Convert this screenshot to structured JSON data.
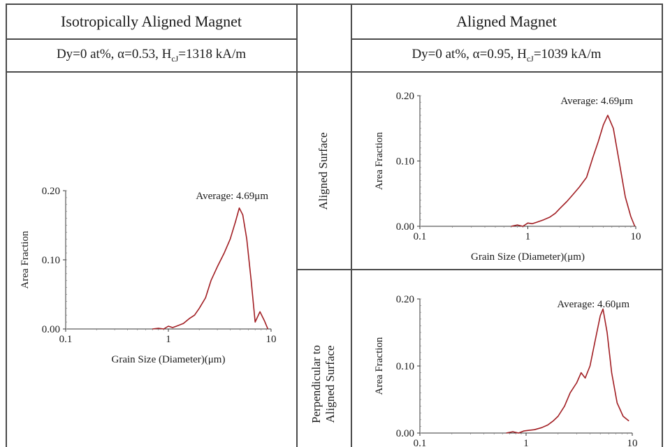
{
  "table": {
    "left_header": "Isotropically Aligned Magnet",
    "right_header": "Aligned Magnet",
    "left_sub": {
      "pre": "Dy=0 at%, α=0.53, H",
      "sub": "cJ",
      "post": "=1318 kA/m"
    },
    "right_sub": {
      "pre": "Dy=0 at%, α=0.95, H",
      "sub": "cJ",
      "post": "=1039 kA/m"
    },
    "row1_label": "Aligned Surface",
    "row2_label_line1": "Perpendicular to",
    "row2_label_line2": "Aligned Surface"
  },
  "colors": {
    "curve": "#a11d22",
    "axis": "#333333",
    "grid_dots": "#888888",
    "border": "#4a4a4a"
  },
  "chart_data": [
    {
      "id": "isotropic",
      "type": "line",
      "title": "",
      "annotation": "Average: 4.69μm",
      "xlabel": "Grain Size (Diameter)(μm)",
      "ylabel": "Area Fraction",
      "x_scale": "log",
      "xlim": [
        0.1,
        10
      ],
      "ylim": [
        0,
        0.2
      ],
      "x_ticks": [
        "0.1",
        "1",
        "10"
      ],
      "y_ticks": [
        "0.00",
        "0.10",
        "0.20"
      ],
      "x": [
        0.7,
        0.8,
        0.9,
        1.0,
        1.1,
        1.2,
        1.4,
        1.6,
        1.8,
        2.0,
        2.3,
        2.6,
        3.0,
        3.5,
        4.0,
        4.5,
        4.9,
        5.3,
        5.8,
        6.4,
        7.0,
        7.8,
        8.6,
        9.3
      ],
      "series": [
        {
          "values": [
            0.0,
            0.001,
            0.0,
            0.004,
            0.002,
            0.004,
            0.008,
            0.015,
            0.02,
            0.03,
            0.045,
            0.07,
            0.09,
            0.11,
            0.13,
            0.155,
            0.175,
            0.165,
            0.13,
            0.07,
            0.01,
            0.025,
            0.012,
            0.0
          ]
        }
      ]
    },
    {
      "id": "aligned-surface",
      "type": "line",
      "title": "",
      "annotation": "Average: 4.69μm",
      "xlabel": "Grain Size (Diameter)(μm)",
      "ylabel": "Area Fraction",
      "x_scale": "log",
      "xlim": [
        0.1,
        10
      ],
      "ylim": [
        0,
        0.2
      ],
      "x_ticks": [
        "0.1",
        "1",
        "10"
      ],
      "y_ticks": [
        "0.00",
        "0.10",
        "0.20"
      ],
      "x": [
        0.7,
        0.8,
        0.9,
        1.0,
        1.1,
        1.2,
        1.4,
        1.6,
        1.8,
        2.0,
        2.3,
        2.6,
        3.0,
        3.5,
        4.0,
        4.5,
        5.0,
        5.5,
        6.2,
        7.0,
        8.0,
        9.0,
        9.8
      ],
      "series": [
        {
          "values": [
            0.0,
            0.002,
            0.0,
            0.005,
            0.004,
            0.006,
            0.01,
            0.014,
            0.02,
            0.028,
            0.038,
            0.048,
            0.06,
            0.075,
            0.105,
            0.13,
            0.155,
            0.17,
            0.15,
            0.1,
            0.045,
            0.015,
            0.0
          ]
        }
      ]
    },
    {
      "id": "perpendicular",
      "type": "line",
      "title": "",
      "annotation": "Average: 4.60μm",
      "xlabel": "",
      "ylabel": "Area Fraction",
      "x_scale": "log",
      "xlim": [
        0.1,
        10
      ],
      "ylim": [
        0,
        0.2
      ],
      "x_ticks": [
        "0.1",
        "1",
        "10"
      ],
      "y_ticks": [
        "0.00",
        "0.10",
        "0.20"
      ],
      "x": [
        0.65,
        0.75,
        0.85,
        0.95,
        1.05,
        1.2,
        1.4,
        1.6,
        1.8,
        2.0,
        2.3,
        2.6,
        3.0,
        3.3,
        3.6,
        4.0,
        4.5,
        5.0,
        5.3,
        5.8,
        6.4,
        7.2,
        8.2,
        9.3
      ],
      "series": [
        {
          "values": [
            0.0,
            0.002,
            0.0,
            0.003,
            0.004,
            0.005,
            0.008,
            0.012,
            0.018,
            0.025,
            0.04,
            0.06,
            0.075,
            0.09,
            0.082,
            0.1,
            0.14,
            0.175,
            0.185,
            0.15,
            0.09,
            0.045,
            0.025,
            0.018
          ]
        }
      ]
    }
  ]
}
